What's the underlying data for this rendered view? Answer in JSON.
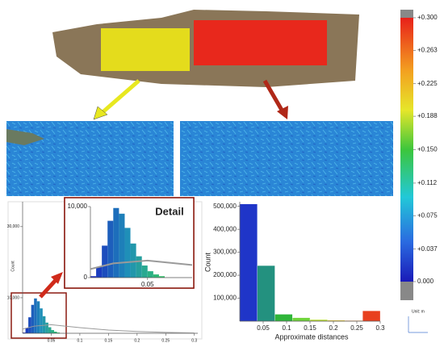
{
  "chart_data": [
    {
      "type": "histogram",
      "y_label": "Count",
      "bins": [
        0,
        0.005,
        0.01,
        0.015,
        0.02,
        0.025,
        0.03,
        0.035,
        0.04,
        0.045,
        0.05,
        0.055,
        0.06,
        0.065
      ],
      "values": [
        200,
        1500,
        4500,
        8000,
        9800,
        9000,
        7000,
        4800,
        3000,
        1700,
        900,
        450,
        200
      ],
      "colors": [
        "#1a2cc0",
        "#1f8fb8",
        "#33c06a"
      ],
      "xlim": [
        0,
        0.306
      ],
      "xticks": [
        0.05,
        0.1,
        0.15,
        0.2,
        0.25,
        0.3
      ],
      "ylim": [
        0,
        37000
      ],
      "yticks": [
        {
          "value": 10000,
          "label": "10,000"
        },
        {
          "value": 30000,
          "label": "30,000"
        }
      ],
      "fit": {
        "x": [
          0,
          0.02,
          0.05,
          0.1,
          0.15,
          0.2,
          0.25,
          0.3
        ],
        "values": [
          1200,
          2000,
          2400,
          1600,
          900,
          500,
          250,
          120
        ],
        "color": "#9a9a9a"
      },
      "inset": {
        "title": "Detail",
        "xlim": [
          0,
          0.089
        ],
        "ylim": [
          0,
          10000
        ],
        "xticks": [
          0.05
        ],
        "yticks": [
          0,
          {
            "value": 10000,
            "label": "10,000"
          }
        ]
      }
    },
    {
      "type": "histogram",
      "y_label": "Count",
      "x_label": "Approximate distances",
      "bins": [
        0,
        0.0375,
        0.075,
        0.1125,
        0.15,
        0.1875,
        0.225,
        0.2625,
        0.3
      ],
      "values": [
        510000,
        242000,
        30000,
        15000,
        7000,
        4000,
        3000,
        45000
      ],
      "bar_colors": [
        "#1f35c8",
        "#23917f",
        "#2fb53a",
        "#6fd43a",
        "#b8dc3a",
        "#e6c52e",
        "#f08a2a",
        "#e8401e"
      ],
      "xlim": [
        0,
        0.3
      ],
      "xticks": [
        0.05,
        0.1,
        0.15,
        0.2,
        0.25,
        0.3
      ],
      "ylim": [
        0,
        520000
      ],
      "yticks": [
        {
          "value": 100000,
          "label": "100,000"
        },
        {
          "value": 200000,
          "label": "200,000"
        },
        {
          "value": 300000,
          "label": "300,000"
        },
        {
          "value": 400000,
          "label": "400,000"
        },
        {
          "value": 500000,
          "label": "500,000"
        }
      ]
    },
    {
      "type": "colorbar",
      "unit": "Unit: m",
      "lim": [
        0,
        0.3
      ],
      "ticks": [
        {
          "value": 0.3,
          "label": "+0.300"
        },
        {
          "value": 0.263,
          "label": "+0.263"
        },
        {
          "value": 0.225,
          "label": "+0.225"
        },
        {
          "value": 0.188,
          "label": "+0.188"
        },
        {
          "value": 0.15,
          "label": "+0.150"
        },
        {
          "value": 0.112,
          "label": "+0.112"
        },
        {
          "value": 0.075,
          "label": "+0.075"
        },
        {
          "value": 0.037,
          "label": "+0.037"
        },
        {
          "value": 0,
          "label": "0.000"
        }
      ]
    }
  ]
}
